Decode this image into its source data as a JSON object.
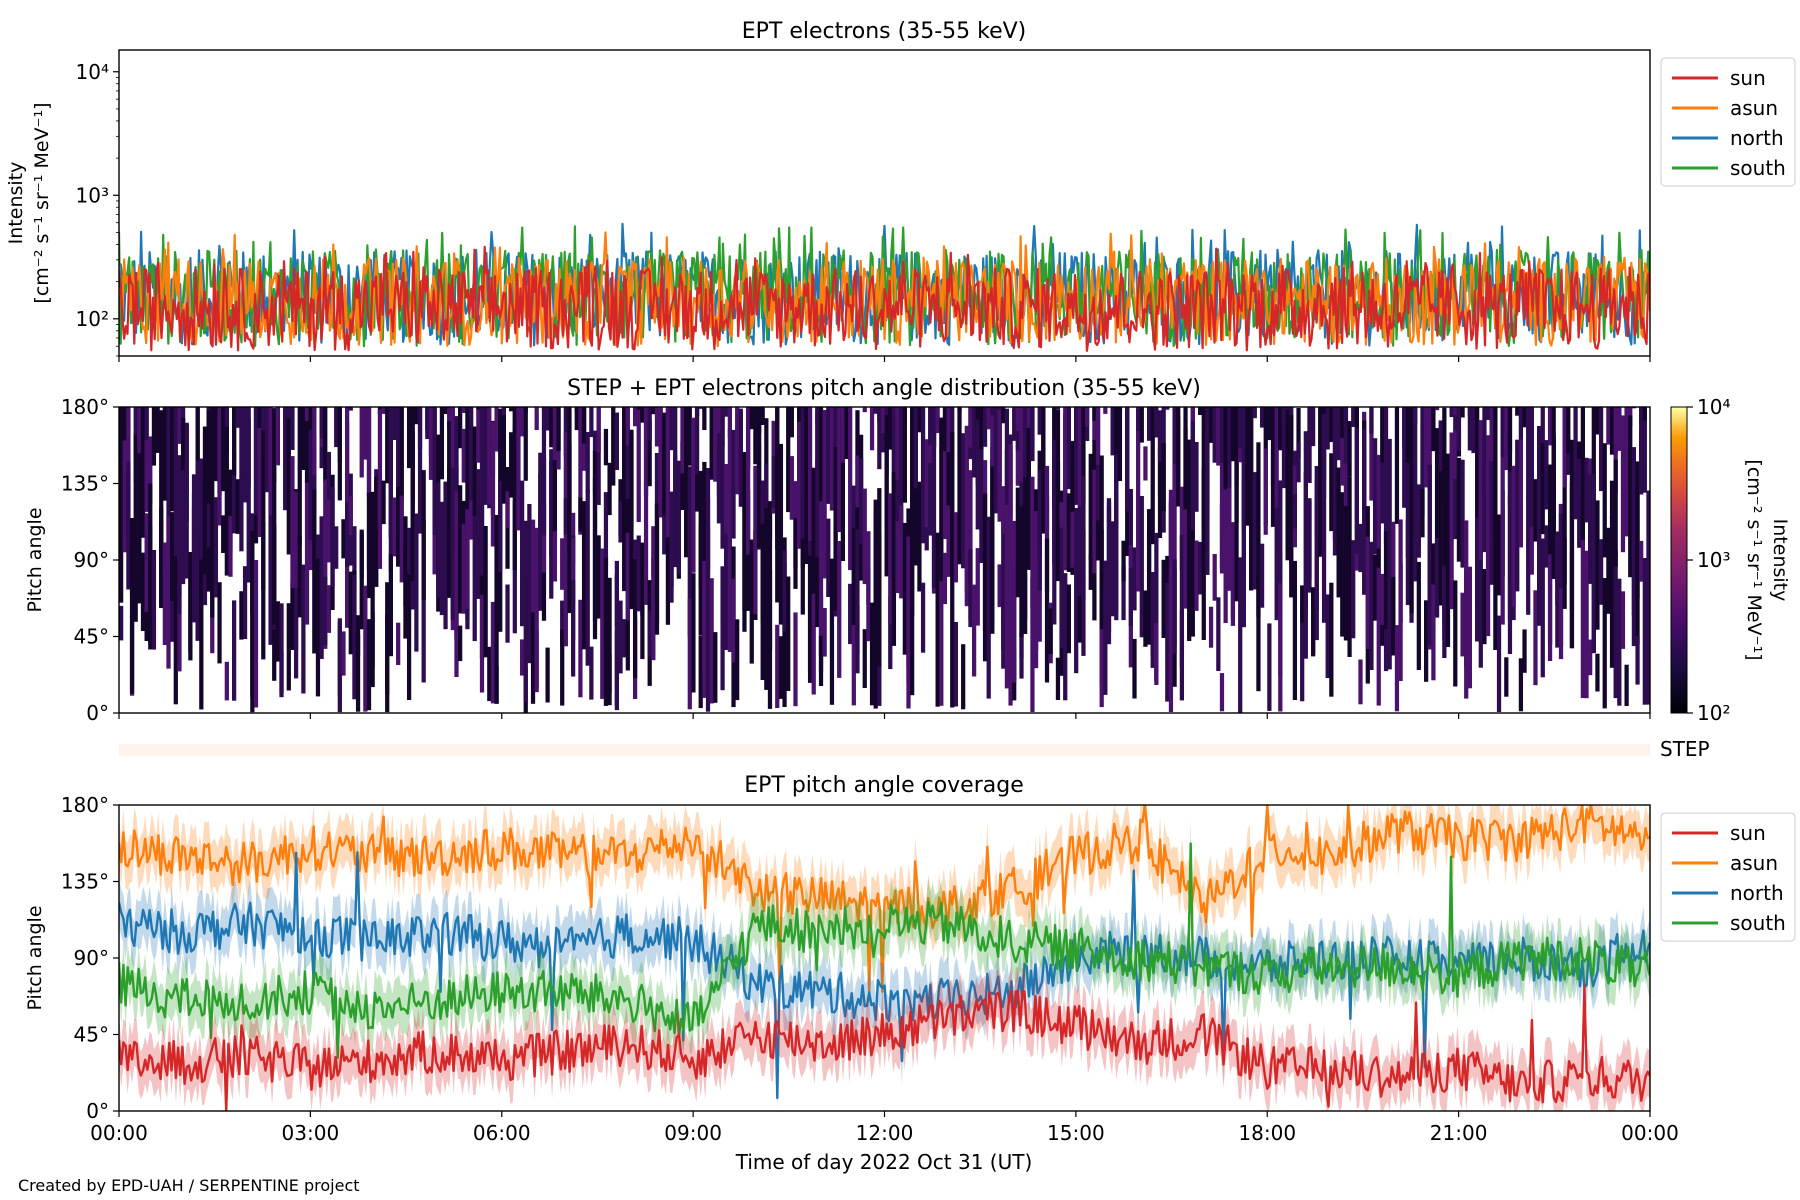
{
  "footer": "Created by EPD-UAH / SERPENTINE project",
  "colors": {
    "sun": "#d62728",
    "asun": "#ff7f0e",
    "north": "#1f77b4",
    "south": "#2ca02c",
    "step_band": "#fff3ef",
    "pad_fill": "#2a0a4a"
  },
  "chart_data": [
    {
      "type": "line",
      "title": "EPT electrons (35-55 keV)",
      "ylabel_line1": "Intensity",
      "ylabel_line2": "[cm⁻² s⁻¹ sr⁻¹ MeV⁻¹]",
      "yscale": "log",
      "ylim": [
        50,
        15000
      ],
      "yticks": [
        {
          "v": 100,
          "label": "10²"
        },
        {
          "v": 1000,
          "label": "10³"
        },
        {
          "v": 10000,
          "label": "10⁴"
        }
      ],
      "xlim_hours": [
        0,
        24
      ],
      "legend_placement": "outside-right-top",
      "series": [
        {
          "name": "north",
          "color": "#1f77b4",
          "typical_range": [
            60,
            600
          ]
        },
        {
          "name": "south",
          "color": "#2ca02c",
          "typical_range": [
            60,
            600
          ]
        },
        {
          "name": "asun",
          "color": "#ff7f0e",
          "typical_range": [
            60,
            500
          ]
        },
        {
          "name": "sun",
          "color": "#d62728",
          "typical_range": [
            55,
            400
          ]
        }
      ],
      "legend": [
        "sun",
        "asun",
        "north",
        "south"
      ]
    },
    {
      "type": "heatmap",
      "title": "STEP + EPT electrons pitch angle distribution (35-55 keV)",
      "ylabel": "Pitch angle",
      "ylim": [
        0,
        180
      ],
      "yticks": [
        {
          "v": 0,
          "label": "0°"
        },
        {
          "v": 45,
          "label": "45°"
        },
        {
          "v": 90,
          "label": "90°"
        },
        {
          "v": 135,
          "label": "135°"
        },
        {
          "v": 180,
          "label": "180°"
        }
      ],
      "xlim_hours": [
        0,
        24
      ],
      "colorbar": {
        "label_line1": "Intensity",
        "label_line2": "[cm⁻² s⁻¹ sr⁻¹ MeV⁻¹]",
        "scale": "log",
        "range": [
          100,
          10000
        ],
        "ticks": [
          {
            "v": 100,
            "label": "10²"
          },
          {
            "v": 1000,
            "label": "10³"
          },
          {
            "v": 10000,
            "label": "10⁴"
          }
        ],
        "colormap": "inferno"
      },
      "typical_intensity": 150
    },
    {
      "type": "band",
      "label": "STEP"
    },
    {
      "type": "line",
      "title": "EPT pitch angle coverage",
      "ylabel": "Pitch angle",
      "xlabel": "Time of day 2022 Oct 31 (UT)",
      "ylim": [
        0,
        180
      ],
      "yticks": [
        {
          "v": 0,
          "label": "0°"
        },
        {
          "v": 45,
          "label": "45°"
        },
        {
          "v": 90,
          "label": "90°"
        },
        {
          "v": 135,
          "label": "135°"
        },
        {
          "v": 180,
          "label": "180°"
        }
      ],
      "xlim_hours": [
        0,
        24
      ],
      "xticks": [
        {
          "v": 0,
          "label": "00:00"
        },
        {
          "v": 3,
          "label": "03:00"
        },
        {
          "v": 6,
          "label": "06:00"
        },
        {
          "v": 9,
          "label": "09:00"
        },
        {
          "v": 12,
          "label": "12:00"
        },
        {
          "v": 15,
          "label": "15:00"
        },
        {
          "v": 18,
          "label": "18:00"
        },
        {
          "v": 21,
          "label": "21:00"
        },
        {
          "v": 24,
          "label": "00:00"
        }
      ],
      "legend_placement": "outside-right-top",
      "legend": [
        "sun",
        "asun",
        "north",
        "south"
      ],
      "series": [
        {
          "name": "sun",
          "color": "#d62728",
          "x": [
            0,
            1,
            2,
            3,
            4,
            5,
            6,
            7,
            8,
            9,
            10,
            11,
            12,
            13,
            14,
            15,
            16,
            17,
            18,
            19,
            20,
            21,
            22,
            23,
            24
          ],
          "values": [
            30,
            28,
            32,
            25,
            30,
            35,
            30,
            35,
            40,
            30,
            45,
            40,
            45,
            55,
            60,
            50,
            40,
            45,
            25,
            25,
            20,
            25,
            15,
            20,
            18
          ]
        },
        {
          "name": "asun",
          "color": "#ff7f0e",
          "x": [
            0,
            1,
            2,
            3,
            4,
            5,
            6,
            7,
            8,
            9,
            10,
            11,
            12,
            13,
            14,
            15,
            16,
            17,
            18,
            19,
            20,
            21,
            22,
            23,
            24
          ],
          "values": [
            155,
            150,
            145,
            155,
            150,
            150,
            155,
            150,
            150,
            160,
            130,
            125,
            120,
            120,
            130,
            150,
            160,
            120,
            155,
            150,
            165,
            160,
            160,
            170,
            160
          ]
        },
        {
          "name": "north",
          "color": "#1f77b4",
          "x": [
            0,
            1,
            2,
            3,
            4,
            5,
            6,
            7,
            8,
            9,
            10,
            11,
            12,
            13,
            14,
            15,
            16,
            17,
            18,
            19,
            20,
            21,
            22,
            23,
            24
          ],
          "values": [
            110,
            105,
            110,
            105,
            100,
            105,
            100,
            95,
            105,
            100,
            75,
            70,
            65,
            65,
            70,
            90,
            95,
            90,
            85,
            90,
            90,
            85,
            90,
            85,
            95
          ]
        },
        {
          "name": "south",
          "color": "#2ca02c",
          "x": [
            0,
            1,
            2,
            3,
            4,
            5,
            6,
            7,
            8,
            9,
            10,
            11,
            12,
            13,
            14,
            15,
            16,
            17,
            18,
            19,
            20,
            21,
            22,
            23,
            24
          ],
          "values": [
            75,
            65,
            65,
            70,
            60,
            65,
            70,
            70,
            65,
            50,
            110,
            105,
            110,
            110,
            100,
            95,
            90,
            85,
            80,
            85,
            85,
            80,
            90,
            90,
            80
          ]
        }
      ]
    }
  ]
}
